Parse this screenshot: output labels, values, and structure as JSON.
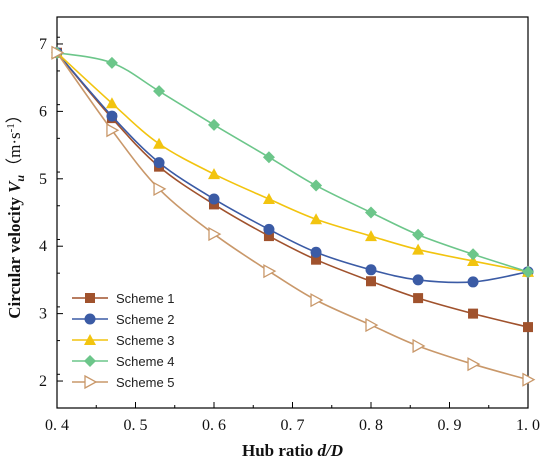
{
  "chart_data": {
    "type": "line",
    "xlabel_parts": [
      "Hub ratio ",
      "d/D"
    ],
    "ylabel_parts": [
      "Circular velocity ",
      "V",
      "u",
      "（m·s",
      "-1",
      "）"
    ],
    "xlim": [
      0.4,
      1.0
    ],
    "ylim": [
      1.6,
      7.4
    ],
    "xticks": [
      0.4,
      0.5,
      0.6,
      0.7,
      0.8,
      0.9,
      1.0
    ],
    "xtick_labels": [
      "0. 4",
      "0. 5",
      "0. 6",
      "0. 7",
      "0. 8",
      "0. 9",
      "1. 0"
    ],
    "yticks": [
      2,
      3,
      4,
      5,
      6,
      7
    ],
    "ytick_labels": [
      "2",
      "3",
      "4",
      "5",
      "6",
      "7"
    ],
    "x": [
      0.4,
      0.47,
      0.53,
      0.6,
      0.67,
      0.73,
      0.8,
      0.86,
      0.93,
      1.0
    ],
    "grid": false,
    "legend_position": "bottom-left",
    "series": [
      {
        "name": "Scheme 1",
        "color": "#a0522d",
        "marker": "square",
        "values": [
          6.87,
          5.9,
          5.18,
          4.62,
          4.15,
          3.8,
          3.48,
          3.23,
          3.0,
          2.8
        ]
      },
      {
        "name": "Scheme 2",
        "color": "#3b5ba5",
        "marker": "circle",
        "values": [
          6.87,
          5.93,
          5.24,
          4.7,
          4.25,
          3.91,
          3.65,
          3.5,
          3.47,
          3.62
        ]
      },
      {
        "name": "Scheme 3",
        "color": "#f2c40f",
        "marker": "triangle",
        "values": [
          6.87,
          6.12,
          5.52,
          5.07,
          4.7,
          4.4,
          4.15,
          3.95,
          3.78,
          3.62
        ]
      },
      {
        "name": "Scheme 4",
        "color": "#6cc68a",
        "marker": "diamond",
        "values": [
          6.87,
          6.72,
          6.3,
          5.8,
          5.32,
          4.9,
          4.5,
          4.17,
          3.88,
          3.62
        ]
      },
      {
        "name": "Scheme 5",
        "color": "#c9986a",
        "marker": "triangle-right-open",
        "values": [
          6.87,
          5.72,
          4.85,
          4.18,
          3.63,
          3.2,
          2.83,
          2.52,
          2.25,
          2.02
        ]
      }
    ]
  }
}
